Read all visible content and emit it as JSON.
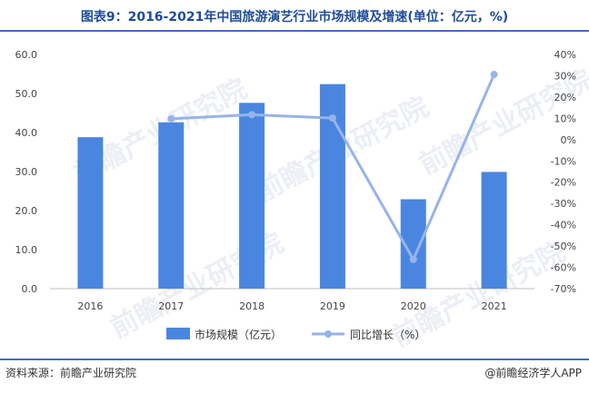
{
  "title": "图表9：2016-2021年中国旅游演艺行业市场规模及增速(单位：亿元，%)",
  "source": "资料来源：前瞻产业研究院",
  "brand": "@前瞻经济学人APP",
  "watermark": "前瞻产业研究院",
  "colors": {
    "bar": "#4a86e0",
    "line": "#96b4ea",
    "accent": "#1e4c9a"
  },
  "chart_data": {
    "type": "bar+line",
    "categories": [
      "2016",
      "2017",
      "2018",
      "2019",
      "2020",
      "2021"
    ],
    "series": [
      {
        "name": "市场规模（亿元）",
        "type": "bar",
        "axis": "left",
        "values": [
          38.8,
          42.6,
          47.6,
          52.4,
          22.9,
          29.9
        ]
      },
      {
        "name": "同比增长（%）",
        "type": "line",
        "axis": "right",
        "values": [
          null,
          9.8,
          11.7,
          10.1,
          -56.3,
          30.6
        ]
      }
    ],
    "y_left": {
      "min": 0,
      "max": 60,
      "ticks": [
        "0.0",
        "10.0",
        "20.0",
        "30.0",
        "40.0",
        "50.0",
        "60.0"
      ]
    },
    "y_right": {
      "min": -70,
      "max": 40,
      "ticks": [
        "-70%",
        "-60%",
        "-50%",
        "-40%",
        "-30%",
        "-20%",
        "-10%",
        "0%",
        "10%",
        "20%",
        "30%",
        "40%"
      ]
    },
    "legend": "bottom"
  }
}
